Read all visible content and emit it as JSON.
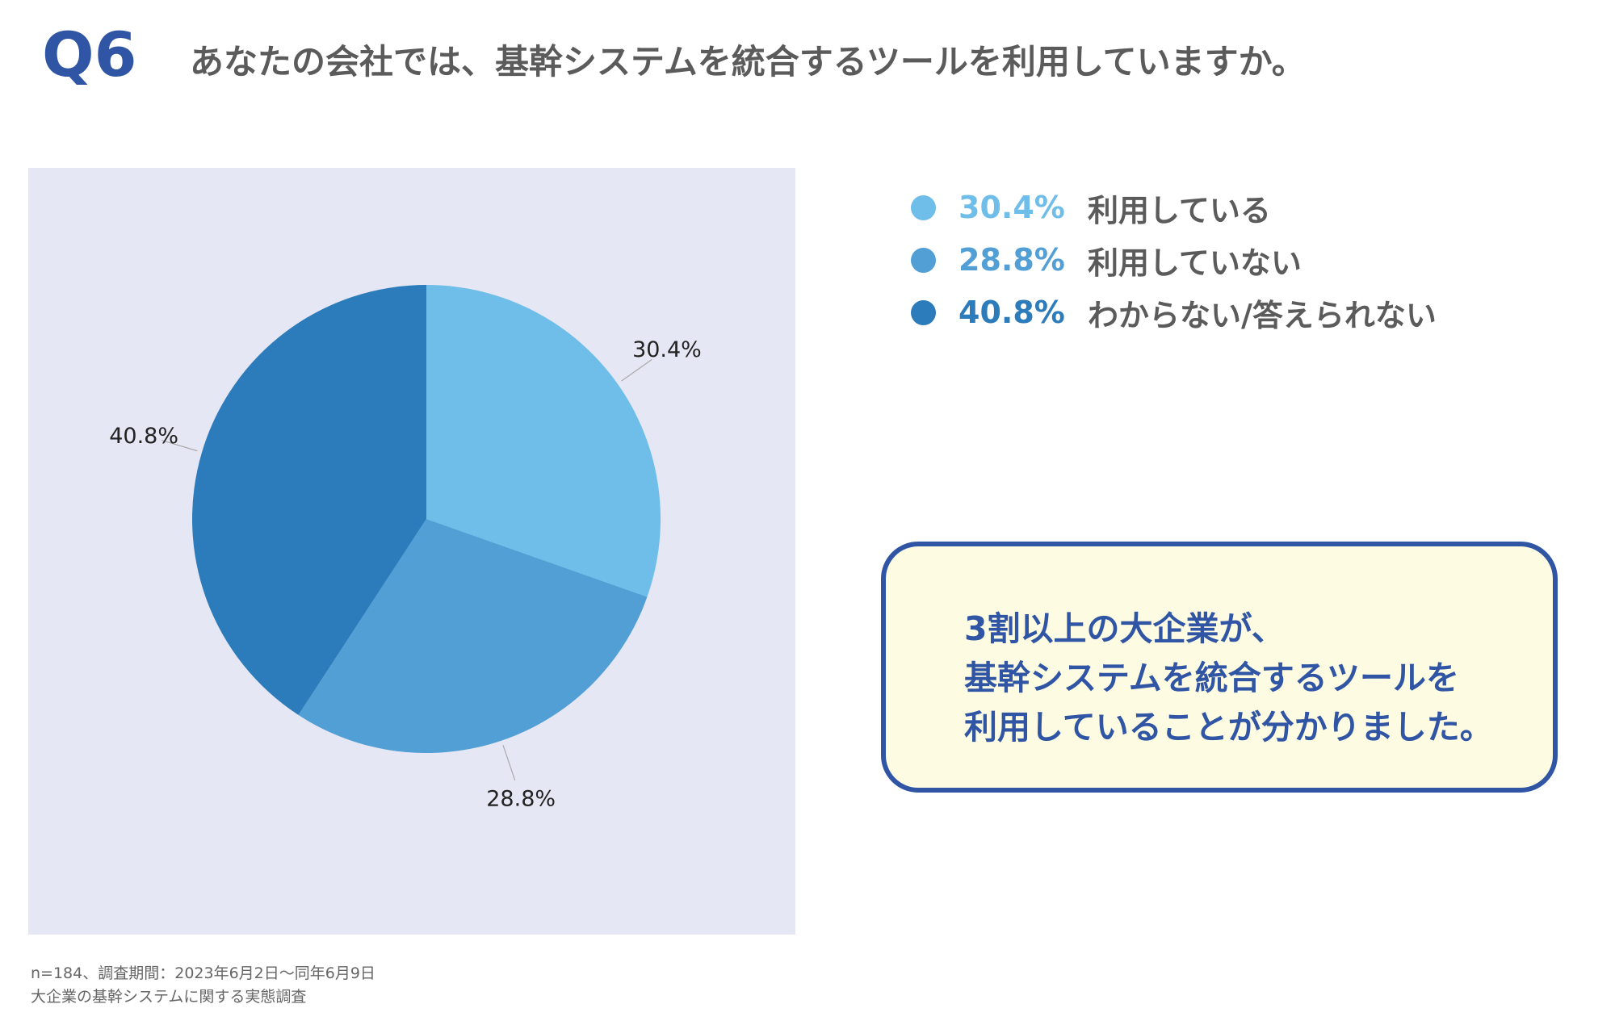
{
  "header": {
    "q_label": "Q6",
    "question": "あなたの会社では、基幹システムを統合するツールを利用していますか。"
  },
  "colors": {
    "brand_blue": "#2f55a4",
    "panel_bg": "#e5e7f4",
    "callout_bg": "#fdfbe1"
  },
  "chart_data": {
    "type": "pie",
    "title": "",
    "series": [
      {
        "label": "利用している",
        "value": 30.4,
        "display": "30.4%",
        "color": "#6fbde9"
      },
      {
        "label": "利用していない",
        "value": 28.8,
        "display": "28.8%",
        "color": "#529fd6"
      },
      {
        "label": "わからない/答えられない",
        "value": 40.8,
        "display": "40.8%",
        "color": "#2c7bbb"
      }
    ],
    "legend_position": "right"
  },
  "legend": {
    "items": [
      {
        "pct": "30.4%",
        "label": "利用している",
        "color": "#6fbde9"
      },
      {
        "pct": "28.8%",
        "label": "利用していない",
        "color": "#529fd6"
      },
      {
        "pct": "40.8%",
        "label": "わからない/答えられない",
        "color": "#2c7bbb"
      }
    ]
  },
  "callout": {
    "line1": "3割以上の大企業が、",
    "line2": "基幹システムを統合するツールを",
    "line3": "利用していることが分かりました。"
  },
  "footnote": {
    "line1": "n=184、調査期間：2023年6月2日〜同年6月9日",
    "line2": "大企業の基幹システムに関する実態調査"
  }
}
